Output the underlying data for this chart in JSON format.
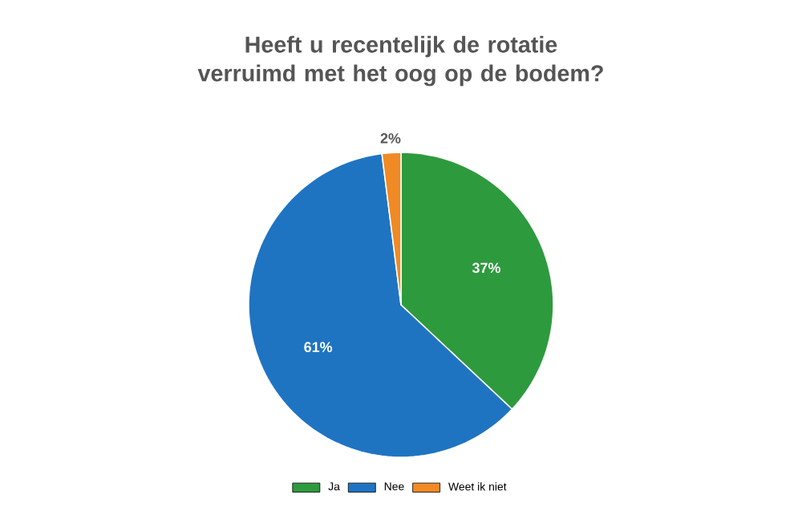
{
  "chart_data": {
    "type": "pie",
    "title": "Heeft u recentelijk de rotatie verruimd met het oog op de bodem?",
    "categories": [
      "Ja",
      "Nee",
      "Weet ik niet"
    ],
    "values": [
      37,
      61,
      2
    ],
    "value_labels": [
      "37%",
      "61%",
      "2%"
    ],
    "colors": [
      "#2e9a3e",
      "#1f74c2",
      "#f08a24"
    ],
    "legend": "bottom"
  }
}
